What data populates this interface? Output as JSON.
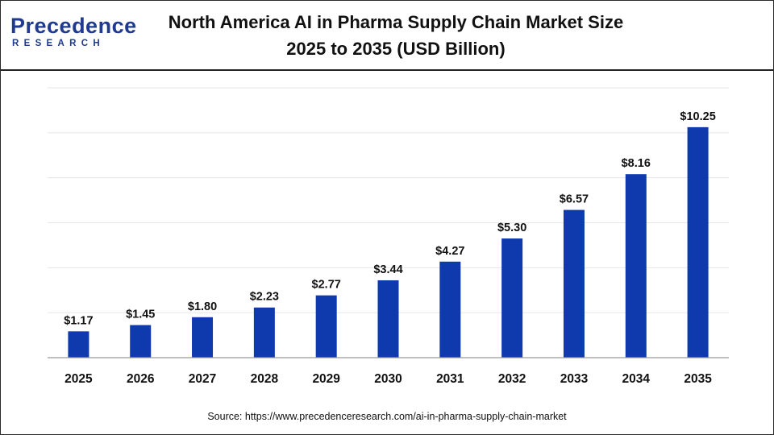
{
  "brand": {
    "name": "Precedence",
    "sub": "RESEARCH",
    "color": "#1f3a8f"
  },
  "source": "Source: https://www.precedenceresearch.com/ai-in-pharma-supply-chain-market",
  "chart_data": {
    "type": "bar",
    "title": "North America AI in Pharma Supply Chain Market Size",
    "subtitle": "2025 to 2035 (USD Billion)",
    "xlabel": "",
    "ylabel": "",
    "categories": [
      "2025",
      "2026",
      "2027",
      "2028",
      "2029",
      "2030",
      "2031",
      "2032",
      "2033",
      "2034",
      "2035"
    ],
    "values": [
      1.17,
      1.45,
      1.8,
      2.23,
      2.77,
      3.44,
      4.27,
      5.3,
      6.57,
      8.16,
      10.25
    ],
    "value_labels": [
      "$1.17",
      "$1.45",
      "$1.80",
      "$2.23",
      "$2.77",
      "$3.44",
      "$4.27",
      "$5.30",
      "$6.57",
      "$8.16",
      "$10.25"
    ],
    "ylim": [
      0,
      12
    ],
    "grid": true,
    "bar_color": "#0f3aad",
    "legend": "none"
  }
}
